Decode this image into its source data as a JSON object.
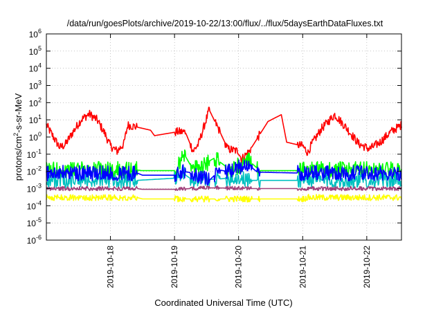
{
  "chart_data": {
    "type": "line",
    "title": "/data/run/goesPlots/archive/2019-10-22/13:00/flux/../flux/5daysEarthDataFluxes.txt",
    "xlabel": "Coordinated Universal Time (UTC)",
    "ylabel": "protons/cm2-s-sr-MeV",
    "ylabel_parts": [
      "protons/cm",
      "2",
      "-s-sr-MeV"
    ],
    "y_scale": "log",
    "ylim": [
      1e-06,
      1000000.0
    ],
    "y_tick_exponents": [
      -6,
      -5,
      -4,
      -3,
      -2,
      -1,
      0,
      1,
      2,
      3,
      4,
      5,
      6
    ],
    "y_tick_base": "10",
    "xlim": [
      "2019-10-17T00:00",
      "2019-10-22T13:00"
    ],
    "x_ticks": [
      {
        "label": "2019-10-18",
        "t": "2019-10-18T00:00"
      },
      {
        "label": "2019-10-19",
        "t": "2019-10-19T00:00"
      },
      {
        "label": "2019-10-20",
        "t": "2019-10-20T00:00"
      },
      {
        "label": "2019-10-21",
        "t": "2019-10-21T00:00"
      },
      {
        "label": "2019-10-22",
        "t": "2019-10-22T00:00"
      }
    ],
    "grid": true,
    "series": [
      {
        "color": "#ff0000",
        "noise": 0.25,
        "points": [
          [
            "2019-10-17T00:00",
            5
          ],
          [
            "2019-10-17T03:00",
            0.8
          ],
          [
            "2019-10-17T05:00",
            0.25
          ],
          [
            "2019-10-17T07:00",
            0.35
          ],
          [
            "2019-10-17T10:00",
            2
          ],
          [
            "2019-10-17T13:00",
            10
          ],
          [
            "2019-10-17T16:00",
            22
          ],
          [
            "2019-10-17T19:00",
            10
          ],
          [
            "2019-10-17T22:00",
            1.5
          ],
          [
            "2019-10-18T00:00",
            0.3
          ],
          [
            "2019-10-18T02:30",
            0.15
          ],
          [
            "2019-10-18T05:00",
            0.4
          ],
          [
            "2019-10-18T06:30",
            5
          ],
          [
            "2019-10-18T15:00",
            2.5
          ],
          [
            "2019-10-18T16:30",
            1.2
          ],
          [
            "2019-10-19T01:00",
            2.0
          ],
          [
            "2019-10-19T04:00",
            2.0
          ],
          [
            "2019-10-19T07:00",
            0.15
          ],
          [
            "2019-10-19T09:00",
            0.4
          ],
          [
            "2019-10-19T13:00",
            38
          ],
          [
            "2019-10-19T17:00",
            2
          ],
          [
            "2019-10-19T20:00",
            0.2
          ],
          [
            "2019-10-20T00:00",
            0.15
          ],
          [
            "2019-10-20T01:00",
            0.05
          ],
          [
            "2019-10-20T04:00",
            0.15
          ],
          [
            "2019-10-20T11:00",
            8
          ],
          [
            "2019-10-20T16:00",
            20
          ],
          [
            "2019-10-20T18:00",
            0.5
          ],
          [
            "2019-10-21T00:00",
            0.3
          ],
          [
            "2019-10-21T02:00",
            0.12
          ],
          [
            "2019-10-21T03:00",
            0.3
          ],
          [
            "2019-10-21T07:00",
            3
          ],
          [
            "2019-10-21T12:00",
            20
          ],
          [
            "2019-10-21T16:00",
            4
          ],
          [
            "2019-10-21T21:00",
            0.4
          ],
          [
            "2019-10-22T01:00",
            0.2
          ],
          [
            "2019-10-22T05:00",
            0.5
          ],
          [
            "2019-10-22T09:00",
            2
          ],
          [
            "2019-10-22T13:00",
            5
          ]
        ]
      },
      {
        "color": "#00ff00",
        "noise": 0.5,
        "points": [
          [
            "2019-10-17T00:00",
            0.012
          ],
          [
            "2019-10-18T10:00",
            0.012
          ],
          [
            "2019-10-18T12:00",
            0.011
          ],
          [
            "2019-10-19T01:00",
            0.011
          ],
          [
            "2019-10-19T03:00",
            0.15
          ],
          [
            "2019-10-19T07:00",
            0.012
          ],
          [
            "2019-10-19T15:00",
            0.06
          ],
          [
            "2019-10-19T21:00",
            0.012
          ],
          [
            "2019-10-20T04:00",
            0.04
          ],
          [
            "2019-10-20T08:00",
            0.011
          ],
          [
            "2019-10-20T23:00",
            0.011
          ],
          [
            "2019-10-21T02:00",
            0.012
          ],
          [
            "2019-10-22T13:00",
            0.012
          ]
        ]
      },
      {
        "color": "#00c0c0",
        "noise": 0.45,
        "points": [
          [
            "2019-10-17T00:00",
            0.003
          ],
          [
            "2019-10-18T10:00",
            0.003
          ],
          [
            "2019-10-19T00:00",
            0.004
          ],
          [
            "2019-10-19T03:00",
            0.008
          ],
          [
            "2019-10-19T07:00",
            0.003
          ],
          [
            "2019-10-19T21:00",
            0.004
          ],
          [
            "2019-10-20T00:00",
            0.004
          ],
          [
            "2019-10-20T04:00",
            0.003
          ],
          [
            "2019-10-20T23:00",
            0.003
          ],
          [
            "2019-10-22T13:00",
            0.003
          ]
        ]
      },
      {
        "color": "#0000ff",
        "noise": 0.45,
        "points": [
          [
            "2019-10-17T00:00",
            0.008
          ],
          [
            "2019-10-18T10:00",
            0.008
          ],
          [
            "2019-10-18T12:00",
            0.006
          ],
          [
            "2019-10-19T01:00",
            0.006
          ],
          [
            "2019-10-19T03:00",
            0.01
          ],
          [
            "2019-10-19T07:00",
            0.008
          ],
          [
            "2019-10-19T13:00",
            0.003
          ],
          [
            "2019-10-19T17:00",
            0.012
          ],
          [
            "2019-10-19T21:00",
            0.009
          ],
          [
            "2019-10-20T03:00",
            0.03
          ],
          [
            "2019-10-20T07:00",
            0.009
          ],
          [
            "2019-10-20T23:00",
            0.008
          ],
          [
            "2019-10-21T02:00",
            0.008
          ],
          [
            "2019-10-22T13:00",
            0.008
          ]
        ]
      },
      {
        "color": "#a0407a",
        "noise": 0.12,
        "points": [
          [
            "2019-10-17T00:00",
            0.001
          ],
          [
            "2019-10-18T10:00",
            0.001
          ],
          [
            "2019-10-18T12:00",
            0.0009
          ],
          [
            "2019-10-19T01:00",
            0.0009
          ],
          [
            "2019-10-19T06:00",
            0.001
          ],
          [
            "2019-10-19T15:00",
            0.0011
          ],
          [
            "2019-10-20T04:00",
            0.001
          ],
          [
            "2019-10-20T23:00",
            0.001
          ],
          [
            "2019-10-22T13:00",
            0.001
          ]
        ]
      },
      {
        "color": "#ffff00",
        "noise": 0.18,
        "points": [
          [
            "2019-10-17T00:00",
            0.0003
          ],
          [
            "2019-10-18T10:00",
            0.0003
          ],
          [
            "2019-10-18T12:00",
            0.00025
          ],
          [
            "2019-10-21T00:00",
            0.00025
          ],
          [
            "2019-10-21T02:00",
            0.0003
          ],
          [
            "2019-10-22T13:00",
            0.0003
          ]
        ]
      }
    ],
    "gaps": [
      [
        "2019-10-18T10:00",
        "2019-10-19T00:00"
      ],
      [
        "2019-10-19T04:00",
        "2019-10-19T06:00"
      ],
      [
        "2019-10-19T13:00",
        "2019-10-19T15:00"
      ],
      [
        "2019-10-19T17:00",
        "2019-10-19T19:00"
      ],
      [
        "2019-10-20T05:00",
        "2019-10-20T07:00"
      ],
      [
        "2019-10-20T08:00",
        "2019-10-20T22:00"
      ]
    ]
  }
}
